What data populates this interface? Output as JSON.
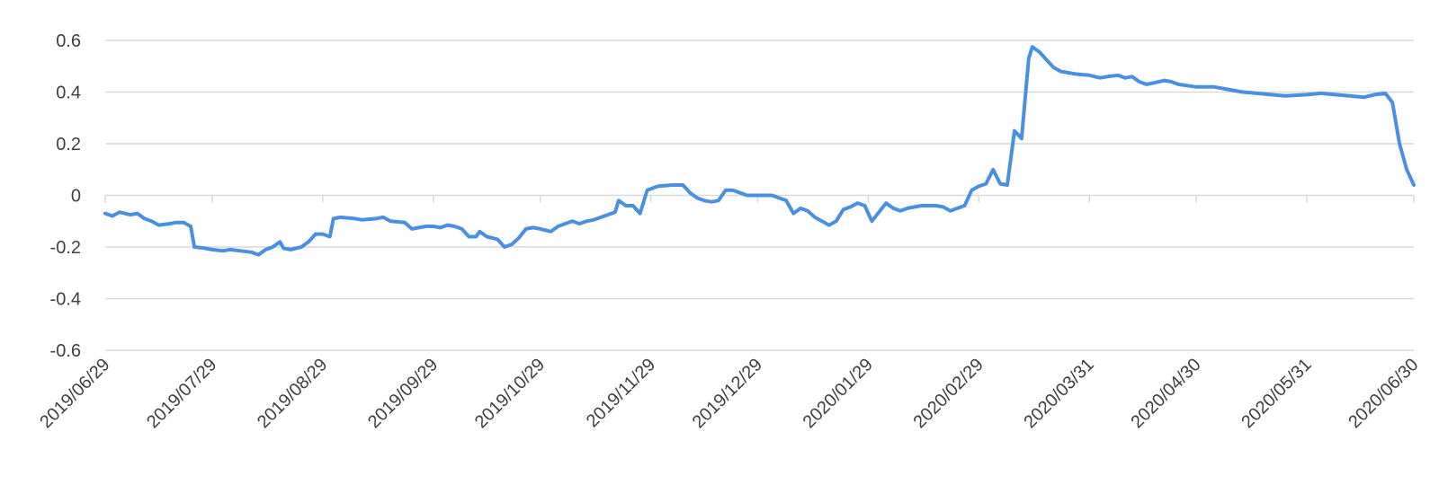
{
  "chart_data": {
    "type": "line",
    "title": "",
    "xlabel": "",
    "ylabel": "",
    "ylim": [
      -0.6,
      0.6
    ],
    "y_ticks": [
      "0.6",
      "0.4",
      "0.2",
      "0",
      "-0.2",
      "-0.4",
      "-0.6"
    ],
    "x_ticks": [
      "2019/06/29",
      "2019/07/29",
      "2019/08/29",
      "2019/09/29",
      "2019/10/29",
      "2019/11/29",
      "2019/12/29",
      "2020/01/29",
      "2020/02/29",
      "2020/03/31",
      "2020/04/30",
      "2020/05/31",
      "2020/06/30"
    ],
    "grid": true,
    "legend": "none",
    "series": [
      {
        "color": "#4a90e2",
        "points": [
          [
            "2019/06/29",
            -0.07
          ],
          [
            "2019/07/01",
            -0.08
          ],
          [
            "2019/07/03",
            -0.065
          ],
          [
            "2019/07/06",
            -0.075
          ],
          [
            "2019/07/08",
            -0.07
          ],
          [
            "2019/07/10",
            -0.09
          ],
          [
            "2019/07/12",
            -0.1
          ],
          [
            "2019/07/14",
            -0.115
          ],
          [
            "2019/07/17",
            -0.11
          ],
          [
            "2019/07/19",
            -0.105
          ],
          [
            "2019/07/21",
            -0.105
          ],
          [
            "2019/07/23",
            -0.12
          ],
          [
            "2019/07/24",
            -0.2
          ],
          [
            "2019/07/27",
            -0.205
          ],
          [
            "2019/07/29",
            -0.21
          ],
          [
            "2019/08/01",
            -0.215
          ],
          [
            "2019/08/03",
            -0.21
          ],
          [
            "2019/08/06",
            -0.215
          ],
          [
            "2019/08/09",
            -0.22
          ],
          [
            "2019/08/11",
            -0.23
          ],
          [
            "2019/08/13",
            -0.21
          ],
          [
            "2019/08/15",
            -0.2
          ],
          [
            "2019/08/17",
            -0.18
          ],
          [
            "2019/08/18",
            -0.205
          ],
          [
            "2019/08/20",
            -0.21
          ],
          [
            "2019/08/23",
            -0.2
          ],
          [
            "2019/08/25",
            -0.18
          ],
          [
            "2019/08/27",
            -0.15
          ],
          [
            "2019/08/29",
            -0.15
          ],
          [
            "2019/08/31",
            -0.16
          ],
          [
            "2019/09/01",
            -0.09
          ],
          [
            "2019/09/03",
            -0.085
          ],
          [
            "2019/09/07",
            -0.09
          ],
          [
            "2019/09/09",
            -0.095
          ],
          [
            "2019/09/13",
            -0.09
          ],
          [
            "2019/09/15",
            -0.085
          ],
          [
            "2019/09/17",
            -0.1
          ],
          [
            "2019/09/21",
            -0.105
          ],
          [
            "2019/09/23",
            -0.13
          ],
          [
            "2019/09/25",
            -0.125
          ],
          [
            "2019/09/27",
            -0.12
          ],
          [
            "2019/09/29",
            -0.12
          ],
          [
            "2019/10/01",
            -0.125
          ],
          [
            "2019/10/03",
            -0.115
          ],
          [
            "2019/10/05",
            -0.12
          ],
          [
            "2019/10/07",
            -0.13
          ],
          [
            "2019/10/09",
            -0.16
          ],
          [
            "2019/10/11",
            -0.16
          ],
          [
            "2019/10/12",
            -0.14
          ],
          [
            "2019/10/14",
            -0.16
          ],
          [
            "2019/10/17",
            -0.17
          ],
          [
            "2019/10/19",
            -0.2
          ],
          [
            "2019/10/21",
            -0.19
          ],
          [
            "2019/10/23",
            -0.165
          ],
          [
            "2019/10/25",
            -0.13
          ],
          [
            "2019/10/27",
            -0.125
          ],
          [
            "2019/10/29",
            -0.13
          ],
          [
            "2019/11/01",
            -0.14
          ],
          [
            "2019/11/03",
            -0.12
          ],
          [
            "2019/11/05",
            -0.11
          ],
          [
            "2019/11/07",
            -0.1
          ],
          [
            "2019/11/09",
            -0.11
          ],
          [
            "2019/11/11",
            -0.1
          ],
          [
            "2019/11/13",
            -0.095
          ],
          [
            "2019/11/15",
            -0.085
          ],
          [
            "2019/11/17",
            -0.075
          ],
          [
            "2019/11/19",
            -0.065
          ],
          [
            "2019/11/20",
            -0.02
          ],
          [
            "2019/11/22",
            -0.04
          ],
          [
            "2019/11/24",
            -0.04
          ],
          [
            "2019/11/26",
            -0.07
          ],
          [
            "2019/11/28",
            0.02
          ],
          [
            "2019/12/01",
            0.035
          ],
          [
            "2019/12/05",
            0.04
          ],
          [
            "2019/12/08",
            0.04
          ],
          [
            "2019/12/10",
            0.01
          ],
          [
            "2019/12/12",
            -0.01
          ],
          [
            "2019/12/14",
            -0.02
          ],
          [
            "2019/12/16",
            -0.025
          ],
          [
            "2019/12/18",
            -0.02
          ],
          [
            "2019/12/20",
            0.02
          ],
          [
            "2019/12/22",
            0.02
          ],
          [
            "2019/12/24",
            0.01
          ],
          [
            "2019/12/26",
            0.0
          ],
          [
            "2019/12/29",
            0.0
          ],
          [
            "2020/01/02",
            0.0
          ],
          [
            "2020/01/04",
            -0.01
          ],
          [
            "2020/01/06",
            -0.02
          ],
          [
            "2020/01/08",
            -0.07
          ],
          [
            "2020/01/10",
            -0.05
          ],
          [
            "2020/01/12",
            -0.06
          ],
          [
            "2020/01/14",
            -0.085
          ],
          [
            "2020/01/16",
            -0.1
          ],
          [
            "2020/01/18",
            -0.115
          ],
          [
            "2020/01/20",
            -0.1
          ],
          [
            "2020/01/22",
            -0.055
          ],
          [
            "2020/01/24",
            -0.045
          ],
          [
            "2020/01/26",
            -0.03
          ],
          [
            "2020/01/28",
            -0.04
          ],
          [
            "2020/01/30",
            -0.1
          ],
          [
            "2020/02/01",
            -0.065
          ],
          [
            "2020/02/03",
            -0.03
          ],
          [
            "2020/02/05",
            -0.05
          ],
          [
            "2020/02/07",
            -0.06
          ],
          [
            "2020/02/09",
            -0.05
          ],
          [
            "2020/02/11",
            -0.045
          ],
          [
            "2020/02/13",
            -0.04
          ],
          [
            "2020/02/17",
            -0.04
          ],
          [
            "2020/02/19",
            -0.045
          ],
          [
            "2020/02/21",
            -0.06
          ],
          [
            "2020/02/23",
            -0.05
          ],
          [
            "2020/02/25",
            -0.04
          ],
          [
            "2020/02/27",
            0.02
          ],
          [
            "2020/02/29",
            0.035
          ],
          [
            "2020/03/02",
            0.045
          ],
          [
            "2020/03/04",
            0.1
          ],
          [
            "2020/03/06",
            0.045
          ],
          [
            "2020/03/08",
            0.04
          ],
          [
            "2020/03/10",
            0.25
          ],
          [
            "2020/03/12",
            0.22
          ],
          [
            "2020/03/14",
            0.53
          ],
          [
            "2020/03/15",
            0.575
          ],
          [
            "2020/03/17",
            0.555
          ],
          [
            "2020/03/19",
            0.525
          ],
          [
            "2020/03/21",
            0.495
          ],
          [
            "2020/03/23",
            0.48
          ],
          [
            "2020/03/27",
            0.47
          ],
          [
            "2020/03/31",
            0.465
          ],
          [
            "2020/04/03",
            0.455
          ],
          [
            "2020/04/05",
            0.46
          ],
          [
            "2020/04/08",
            0.465
          ],
          [
            "2020/04/10",
            0.455
          ],
          [
            "2020/04/12",
            0.46
          ],
          [
            "2020/04/14",
            0.44
          ],
          [
            "2020/04/16",
            0.43
          ],
          [
            "2020/04/18",
            0.435
          ],
          [
            "2020/04/21",
            0.445
          ],
          [
            "2020/04/23",
            0.44
          ],
          [
            "2020/04/25",
            0.43
          ],
          [
            "2020/04/30",
            0.42
          ],
          [
            "2020/05/05",
            0.42
          ],
          [
            "2020/05/09",
            0.41
          ],
          [
            "2020/05/13",
            0.4
          ],
          [
            "2020/05/17",
            0.395
          ],
          [
            "2020/05/21",
            0.39
          ],
          [
            "2020/05/25",
            0.385
          ],
          [
            "2020/05/31",
            0.39
          ],
          [
            "2020/06/04",
            0.395
          ],
          [
            "2020/06/08",
            0.39
          ],
          [
            "2020/06/12",
            0.385
          ],
          [
            "2020/06/16",
            0.38
          ],
          [
            "2020/06/19",
            0.39
          ],
          [
            "2020/06/22",
            0.395
          ],
          [
            "2020/06/24",
            0.36
          ],
          [
            "2020/06/26",
            0.2
          ],
          [
            "2020/06/28",
            0.1
          ],
          [
            "2020/06/30",
            0.04
          ]
        ]
      }
    ]
  }
}
